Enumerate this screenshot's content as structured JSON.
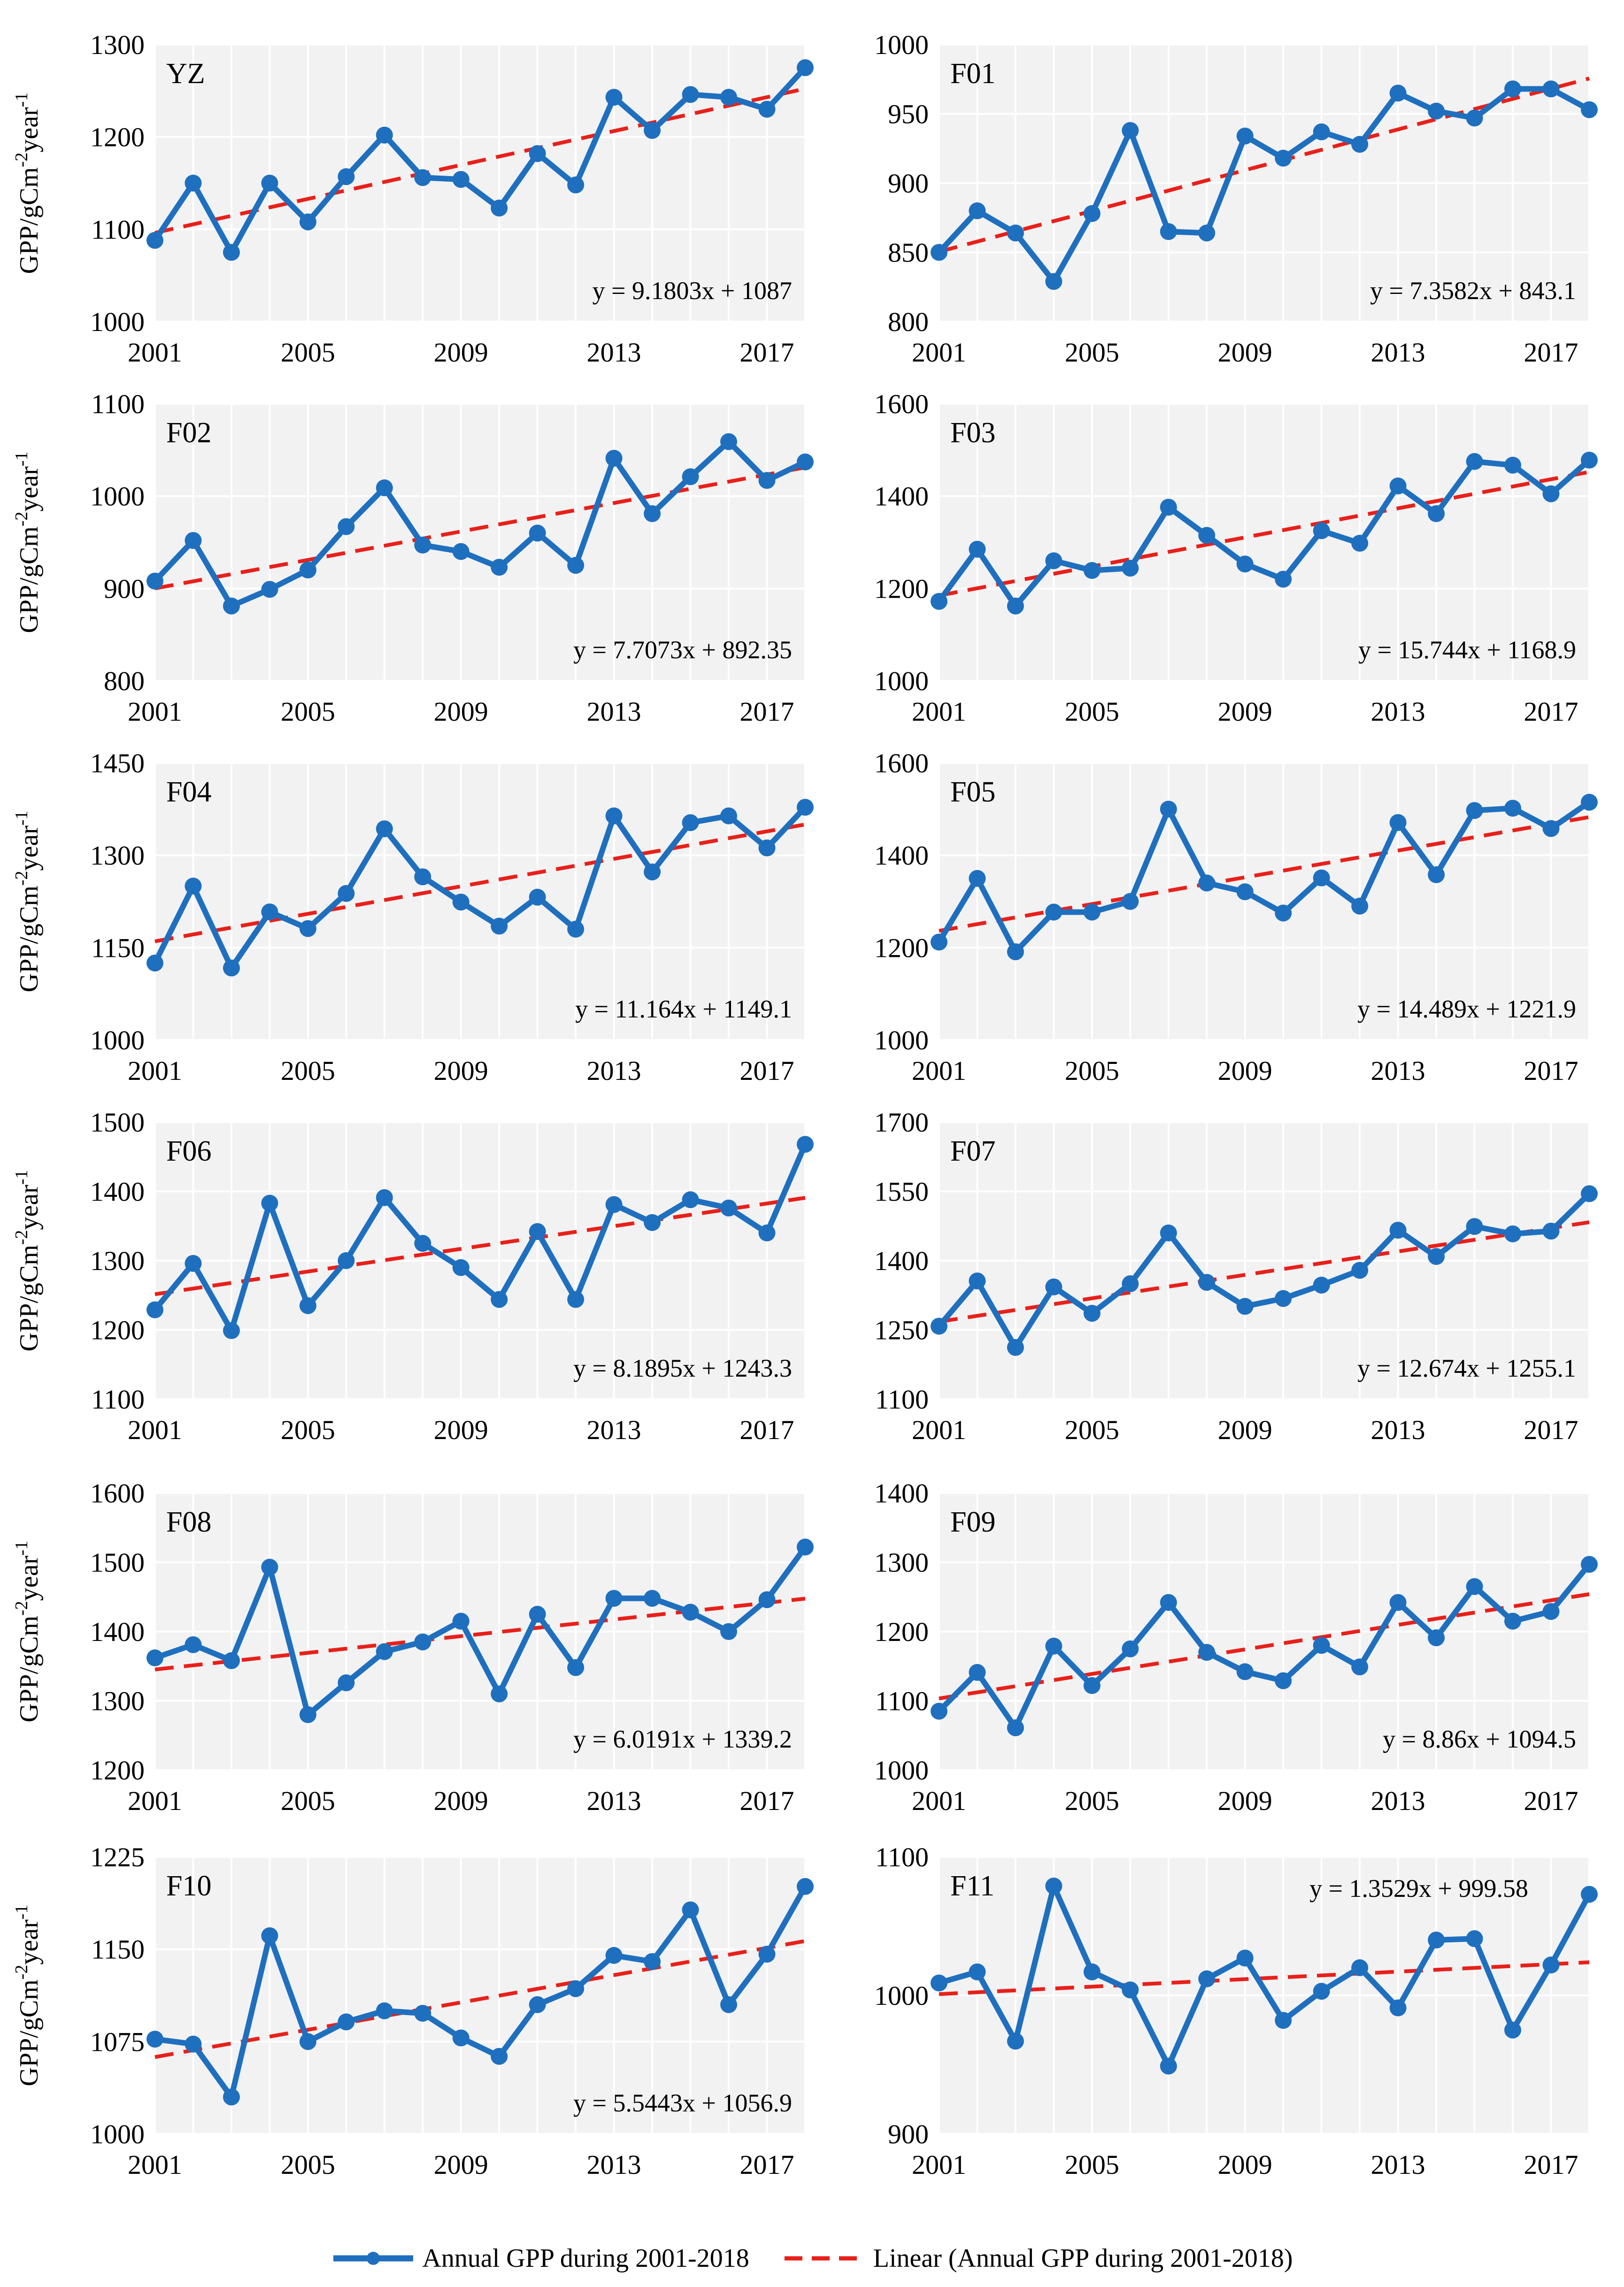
{
  "colors": {
    "series": "#1F6FBF",
    "trend": "#E8201A",
    "plot_bg": "#F2F2F2",
    "grid": "#FFFFFF"
  },
  "ylabel_base": "GPP/gCm",
  "ylabel_sup1": "-2",
  "ylabel_mid": "year",
  "ylabel_sup2": "-1",
  "legend": {
    "series_label": "Annual GPP during 2001-2018",
    "trend_label": "Linear (Annual GPP during 2001-2018)"
  },
  "chart_data": [
    {
      "type": "line",
      "title": "YZ",
      "years": [
        2001,
        2002,
        2003,
        2004,
        2005,
        2006,
        2007,
        2008,
        2009,
        2010,
        2011,
        2012,
        2013,
        2014,
        2015,
        2016,
        2017,
        2018
      ],
      "values": [
        1088,
        1150,
        1075,
        1150,
        1108,
        1157,
        1202,
        1156,
        1154,
        1123,
        1182,
        1148,
        1243,
        1207,
        1246,
        1243,
        1230,
        1275
      ],
      "ylim": [
        1000,
        1300
      ],
      "yticks": [
        1000,
        1100,
        1200,
        1300
      ],
      "xticks": [
        2001,
        2005,
        2009,
        2013,
        2017
      ],
      "equation": "y = 9.1803x + 1087",
      "trend": {
        "slope": 9.1803,
        "intercept": 1087
      },
      "equation_position": "bottom-right"
    },
    {
      "type": "line",
      "title": "F01",
      "years": [
        2001,
        2002,
        2003,
        2004,
        2005,
        2006,
        2007,
        2008,
        2009,
        2010,
        2011,
        2012,
        2013,
        2014,
        2015,
        2016,
        2017,
        2018
      ],
      "values": [
        850,
        880,
        864,
        829,
        878,
        938,
        865,
        864,
        934,
        918,
        937,
        928,
        965,
        952,
        947,
        968,
        968,
        953
      ],
      "ylim": [
        800,
        1000
      ],
      "yticks": [
        800,
        850,
        900,
        950,
        1000
      ],
      "xticks": [
        2001,
        2005,
        2009,
        2013,
        2017
      ],
      "equation": "y = 7.3582x + 843.1",
      "trend": {
        "slope": 7.3582,
        "intercept": 843.1
      },
      "equation_position": "bottom-right"
    },
    {
      "type": "line",
      "title": "F02",
      "years": [
        2001,
        2002,
        2003,
        2004,
        2005,
        2006,
        2007,
        2008,
        2009,
        2010,
        2011,
        2012,
        2013,
        2014,
        2015,
        2016,
        2017,
        2018
      ],
      "values": [
        908,
        952,
        881,
        899,
        920,
        967,
        1009,
        947,
        940,
        923,
        960,
        925,
        1041,
        981,
        1021,
        1059,
        1017,
        1037
      ],
      "ylim": [
        800,
        1100
      ],
      "yticks": [
        800,
        900,
        1000,
        1100
      ],
      "xticks": [
        2001,
        2005,
        2009,
        2013,
        2017
      ],
      "equation": "y = 7.7073x + 892.35",
      "trend": {
        "slope": 7.7073,
        "intercept": 892.35
      },
      "equation_position": "bottom-right"
    },
    {
      "type": "line",
      "title": "F03",
      "years": [
        2001,
        2002,
        2003,
        2004,
        2005,
        2006,
        2007,
        2008,
        2009,
        2010,
        2011,
        2012,
        2013,
        2014,
        2015,
        2016,
        2017,
        2018
      ],
      "values": [
        1172,
        1285,
        1162,
        1260,
        1239,
        1244,
        1376,
        1315,
        1253,
        1220,
        1325,
        1298,
        1422,
        1362,
        1475,
        1467,
        1405,
        1478
      ],
      "ylim": [
        1000,
        1600
      ],
      "yticks": [
        1000,
        1200,
        1400,
        1600
      ],
      "xticks": [
        2001,
        2005,
        2009,
        2013,
        2017
      ],
      "equation": "y = 15.744x + 1168.9",
      "trend": {
        "slope": 15.744,
        "intercept": 1168.9
      },
      "equation_position": "bottom-right"
    },
    {
      "type": "line",
      "title": "F04",
      "years": [
        2001,
        2002,
        2003,
        2004,
        2005,
        2006,
        2007,
        2008,
        2009,
        2010,
        2011,
        2012,
        2013,
        2014,
        2015,
        2016,
        2017,
        2018
      ],
      "values": [
        1125,
        1250,
        1117,
        1208,
        1181,
        1238,
        1343,
        1265,
        1224,
        1185,
        1232,
        1180,
        1364,
        1273,
        1353,
        1364,
        1312,
        1378
      ],
      "ylim": [
        1000,
        1450
      ],
      "yticks": [
        1000,
        1150,
        1300,
        1450
      ],
      "xticks": [
        2001,
        2005,
        2009,
        2013,
        2017
      ],
      "equation": "y = 11.164x + 1149.1",
      "trend": {
        "slope": 11.164,
        "intercept": 1149.1
      },
      "equation_position": "bottom-right"
    },
    {
      "type": "line",
      "title": "F05",
      "years": [
        2001,
        2002,
        2003,
        2004,
        2005,
        2006,
        2007,
        2008,
        2009,
        2010,
        2011,
        2012,
        2013,
        2014,
        2015,
        2016,
        2017,
        2018
      ],
      "values": [
        1212,
        1350,
        1191,
        1277,
        1277,
        1300,
        1500,
        1340,
        1321,
        1275,
        1351,
        1290,
        1471,
        1358,
        1497,
        1502,
        1458,
        1515
      ],
      "ylim": [
        1000,
        1600
      ],
      "yticks": [
        1000,
        1200,
        1400,
        1600
      ],
      "xticks": [
        2001,
        2005,
        2009,
        2013,
        2017
      ],
      "equation": "y = 14.489x + 1221.9",
      "trend": {
        "slope": 14.489,
        "intercept": 1221.9
      },
      "equation_position": "bottom-right"
    },
    {
      "type": "line",
      "title": "F06",
      "years": [
        2001,
        2002,
        2003,
        2004,
        2005,
        2006,
        2007,
        2008,
        2009,
        2010,
        2011,
        2012,
        2013,
        2014,
        2015,
        2016,
        2017,
        2018
      ],
      "values": [
        1229,
        1296,
        1199,
        1383,
        1235,
        1300,
        1391,
        1325,
        1290,
        1244,
        1342,
        1244,
        1381,
        1355,
        1388,
        1376,
        1340,
        1468
      ],
      "ylim": [
        1100,
        1500
      ],
      "yticks": [
        1100,
        1200,
        1300,
        1400,
        1500
      ],
      "xticks": [
        2001,
        2005,
        2009,
        2013,
        2017
      ],
      "equation": "y = 8.1895x + 1243.3",
      "trend": {
        "slope": 8.1895,
        "intercept": 1243.3
      },
      "equation_position": "bottom-right"
    },
    {
      "type": "line",
      "title": "F07",
      "years": [
        2001,
        2002,
        2003,
        2004,
        2005,
        2006,
        2007,
        2008,
        2009,
        2010,
        2011,
        2012,
        2013,
        2014,
        2015,
        2016,
        2017,
        2018
      ],
      "values": [
        1258,
        1356,
        1212,
        1343,
        1286,
        1350,
        1460,
        1353,
        1301,
        1318,
        1347,
        1379,
        1466,
        1409,
        1474,
        1458,
        1464,
        1545
      ],
      "ylim": [
        1100,
        1700
      ],
      "yticks": [
        1100,
        1250,
        1400,
        1550,
        1700
      ],
      "xticks": [
        2001,
        2005,
        2009,
        2013,
        2017
      ],
      "equation": "y = 12.674x + 1255.1",
      "trend": {
        "slope": 12.674,
        "intercept": 1255.1
      },
      "equation_position": "bottom-right"
    },
    {
      "type": "line",
      "title": "F08",
      "years": [
        2001,
        2002,
        2003,
        2004,
        2005,
        2006,
        2007,
        2008,
        2009,
        2010,
        2011,
        2012,
        2013,
        2014,
        2015,
        2016,
        2017,
        2018
      ],
      "values": [
        1362,
        1381,
        1358,
        1493,
        1280,
        1326,
        1371,
        1385,
        1415,
        1310,
        1425,
        1348,
        1448,
        1448,
        1428,
        1400,
        1446,
        1522
      ],
      "ylim": [
        1200,
        1600
      ],
      "yticks": [
        1200,
        1300,
        1400,
        1500,
        1600
      ],
      "xticks": [
        2001,
        2005,
        2009,
        2013,
        2017
      ],
      "equation": "y = 6.0191x + 1339.2",
      "trend": {
        "slope": 6.0191,
        "intercept": 1339.2
      },
      "equation_position": "bottom-right"
    },
    {
      "type": "line",
      "title": "F09",
      "years": [
        2001,
        2002,
        2003,
        2004,
        2005,
        2006,
        2007,
        2008,
        2009,
        2010,
        2011,
        2012,
        2013,
        2014,
        2015,
        2016,
        2017,
        2018
      ],
      "values": [
        1085,
        1141,
        1061,
        1179,
        1122,
        1175,
        1242,
        1170,
        1142,
        1129,
        1180,
        1149,
        1242,
        1191,
        1265,
        1215,
        1229,
        1297
      ],
      "ylim": [
        1000,
        1400
      ],
      "yticks": [
        1000,
        1100,
        1200,
        1300,
        1400
      ],
      "xticks": [
        2001,
        2005,
        2009,
        2013,
        2017
      ],
      "equation": "y = 8.86x + 1094.5",
      "trend": {
        "slope": 8.86,
        "intercept": 1094.5
      },
      "equation_position": "bottom-right"
    },
    {
      "type": "line",
      "title": "F10",
      "years": [
        2001,
        2002,
        2003,
        2004,
        2005,
        2006,
        2007,
        2008,
        2009,
        2010,
        2011,
        2012,
        2013,
        2014,
        2015,
        2016,
        2017,
        2018
      ],
      "values": [
        1077,
        1073,
        1030,
        1161,
        1075,
        1091,
        1100,
        1098,
        1078,
        1063,
        1105,
        1118,
        1145,
        1140,
        1182,
        1105,
        1146,
        1201
      ],
      "ylim": [
        1000,
        1225
      ],
      "yticks": [
        1000,
        1075,
        1150,
        1225
      ],
      "xticks": [
        2001,
        2005,
        2009,
        2013,
        2017
      ],
      "equation": "y = 5.5443x + 1056.9",
      "trend": {
        "slope": 5.5443,
        "intercept": 1056.9
      },
      "equation_position": "bottom-right"
    },
    {
      "type": "line",
      "title": "F11",
      "years": [
        2001,
        2002,
        2003,
        2004,
        2005,
        2006,
        2007,
        2008,
        2009,
        2010,
        2011,
        2012,
        2013,
        2014,
        2015,
        2016,
        2017,
        2018
      ],
      "values": [
        1009,
        1017,
        967,
        1079,
        1017,
        1004,
        949,
        1012,
        1027,
        982,
        1003,
        1020,
        991,
        1040,
        1041,
        975,
        1022,
        1073
      ],
      "ylim": [
        900,
        1100
      ],
      "yticks": [
        900,
        1000,
        1100
      ],
      "xticks": [
        2001,
        2005,
        2009,
        2013,
        2017
      ],
      "equation": "y = 1.3529x + 999.58",
      "trend": {
        "slope": 1.3529,
        "intercept": 999.58
      },
      "equation_position": "top-right"
    }
  ]
}
